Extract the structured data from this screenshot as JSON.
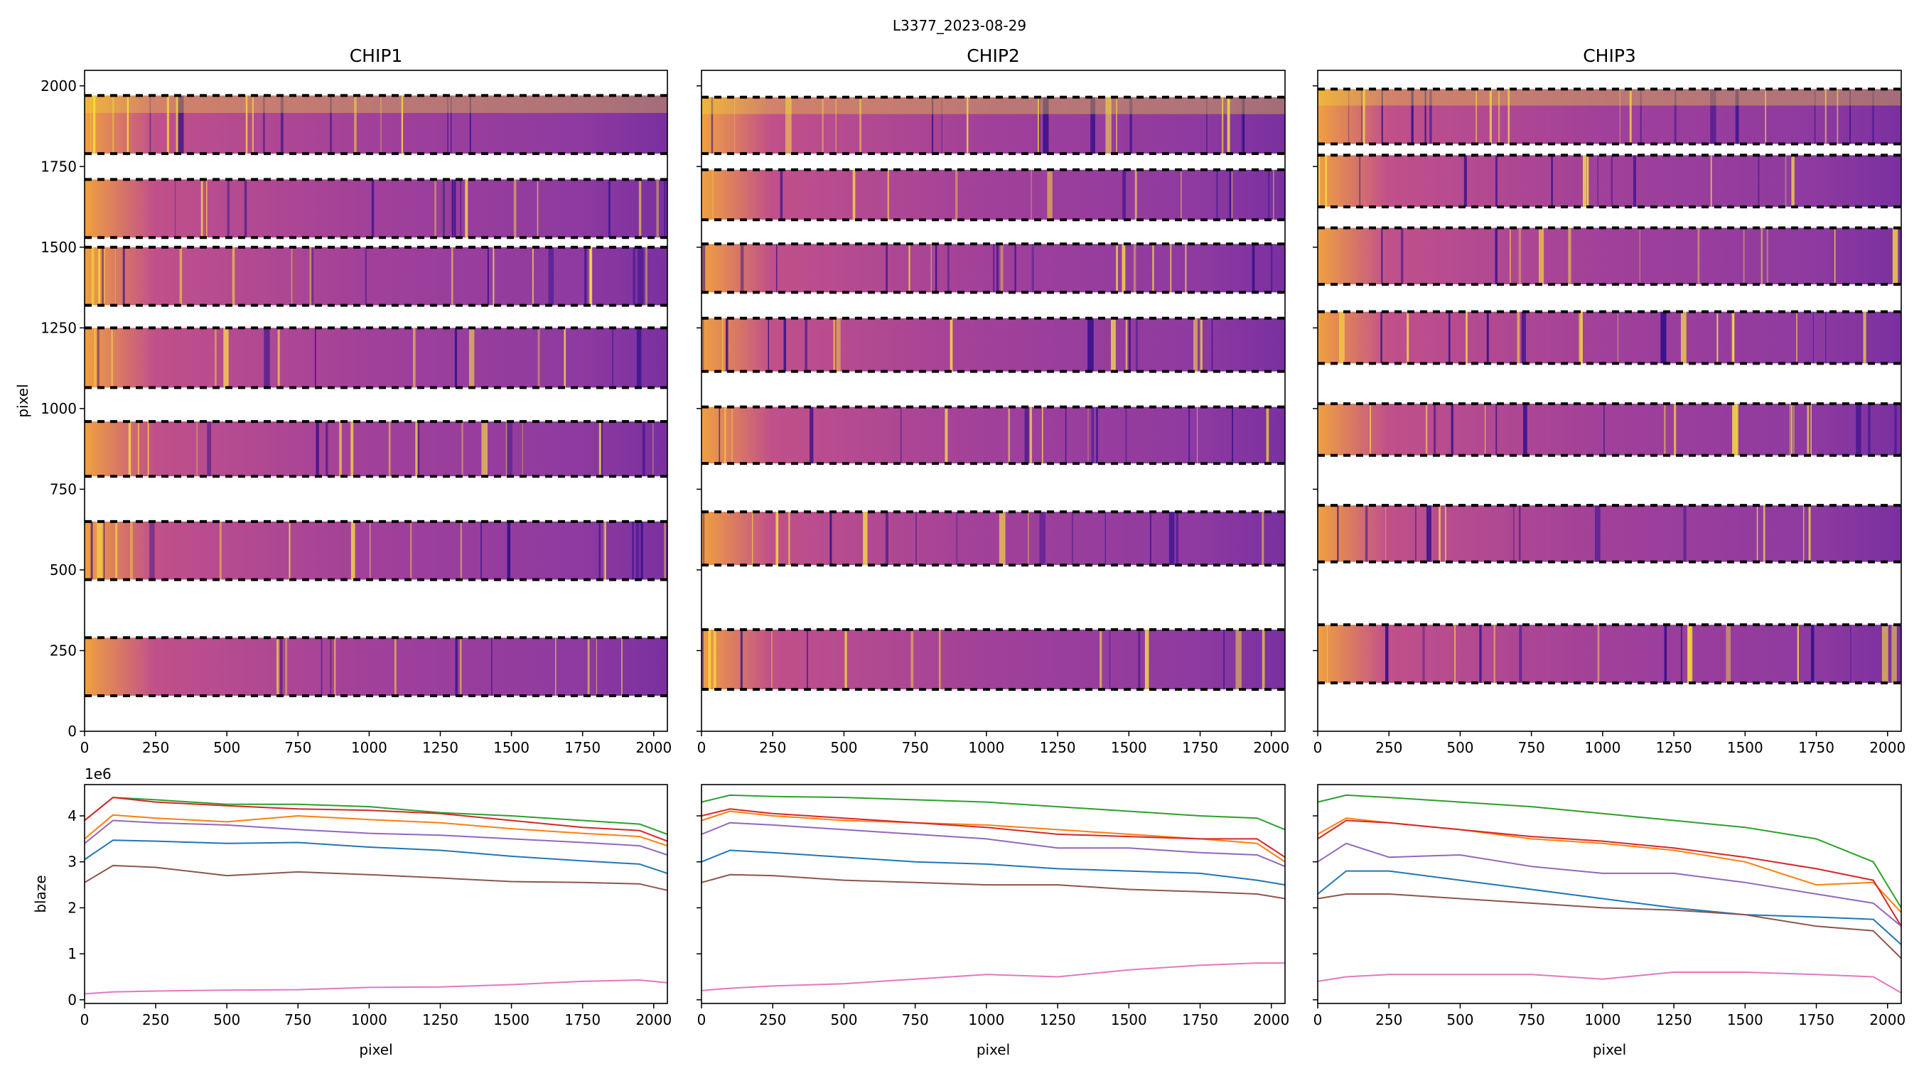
{
  "suptitle": "L3377_2023-08-29",
  "colors": {
    "series": [
      "#1f77b4",
      "#ff7f0e",
      "#2ca02c",
      "#d62728",
      "#9467bd",
      "#8c564b",
      "#e377c2"
    ],
    "cmap": "plasma"
  },
  "chart_data": [
    {
      "type": "heatmap",
      "title": "CHIP1",
      "ylabel": "pixel",
      "xlim": [
        0,
        2048
      ],
      "ylim": [
        0,
        2048
      ],
      "xticks": [
        0,
        250,
        500,
        750,
        1000,
        1250,
        1500,
        1750,
        2000
      ],
      "yticks": [
        0,
        250,
        500,
        750,
        1000,
        1250,
        1500,
        1750,
        2000
      ],
      "show_yticklabels": true,
      "orders": [
        [
          110,
          290
        ],
        [
          470,
          650
        ],
        [
          790,
          960
        ],
        [
          1065,
          1250
        ],
        [
          1320,
          1500
        ],
        [
          1530,
          1710
        ],
        [
          1790,
          1970
        ]
      ]
    },
    {
      "type": "heatmap",
      "title": "CHIP2",
      "ylabel": "",
      "xlim": [
        0,
        2048
      ],
      "ylim": [
        0,
        2048
      ],
      "xticks": [
        0,
        250,
        500,
        750,
        1000,
        1250,
        1500,
        1750,
        2000
      ],
      "yticks": [
        0,
        250,
        500,
        750,
        1000,
        1250,
        1500,
        1750,
        2000
      ],
      "show_yticklabels": false,
      "orders": [
        [
          130,
          315
        ],
        [
          515,
          680
        ],
        [
          830,
          1005
        ],
        [
          1115,
          1280
        ],
        [
          1360,
          1510
        ],
        [
          1585,
          1740
        ],
        [
          1790,
          1965
        ]
      ]
    },
    {
      "type": "heatmap",
      "title": "CHIP3",
      "ylabel": "",
      "xlim": [
        0,
        2048
      ],
      "ylim": [
        0,
        2048
      ],
      "xticks": [
        0,
        250,
        500,
        750,
        1000,
        1250,
        1500,
        1750,
        2000
      ],
      "yticks": [
        0,
        250,
        500,
        750,
        1000,
        1250,
        1500,
        1750,
        2000
      ],
      "show_yticklabels": false,
      "orders": [
        [
          150,
          330
        ],
        [
          525,
          700
        ],
        [
          855,
          1015
        ],
        [
          1140,
          1300
        ],
        [
          1385,
          1560
        ],
        [
          1625,
          1785
        ],
        [
          1820,
          1990
        ]
      ]
    },
    {
      "type": "line",
      "xlabel": "pixel",
      "ylabel": "blaze",
      "offset_text": "1e6",
      "xlim": [
        0,
        2048
      ],
      "ylim": [
        -0.08,
        4.68
      ],
      "xticks": [
        0,
        250,
        500,
        750,
        1000,
        1250,
        1500,
        1750,
        2000
      ],
      "yticks": [
        0,
        1,
        2,
        3,
        4
      ],
      "show_yticklabels": true,
      "x": [
        0,
        100,
        250,
        500,
        750,
        1000,
        1250,
        1500,
        1750,
        1950,
        2048
      ],
      "series": [
        {
          "values": [
            3.05,
            3.47,
            3.45,
            3.4,
            3.42,
            3.32,
            3.25,
            3.12,
            3.02,
            2.95,
            2.75
          ]
        },
        {
          "values": [
            3.5,
            4.02,
            3.95,
            3.87,
            4.0,
            3.92,
            3.85,
            3.72,
            3.62,
            3.55,
            3.35
          ]
        },
        {
          "values": [
            3.9,
            4.4,
            4.35,
            4.25,
            4.25,
            4.2,
            4.07,
            4.0,
            3.9,
            3.82,
            3.6
          ]
        },
        {
          "values": [
            3.9,
            4.4,
            4.3,
            4.22,
            4.15,
            4.12,
            4.05,
            3.9,
            3.75,
            3.68,
            3.45
          ]
        },
        {
          "values": [
            3.4,
            3.9,
            3.85,
            3.8,
            3.7,
            3.62,
            3.58,
            3.5,
            3.42,
            3.35,
            3.15
          ]
        },
        {
          "values": [
            2.55,
            2.92,
            2.88,
            2.7,
            2.78,
            2.72,
            2.65,
            2.57,
            2.55,
            2.52,
            2.38
          ]
        },
        {
          "values": [
            0.13,
            0.17,
            0.19,
            0.21,
            0.22,
            0.27,
            0.28,
            0.33,
            0.4,
            0.43,
            0.37
          ]
        }
      ]
    },
    {
      "type": "line",
      "xlabel": "pixel",
      "ylabel": "",
      "xlim": [
        0,
        2048
      ],
      "ylim": [
        -0.08,
        4.68
      ],
      "xticks": [
        0,
        250,
        500,
        750,
        1000,
        1250,
        1500,
        1750,
        2000
      ],
      "yticks": [
        0,
        1,
        2,
        3,
        4
      ],
      "show_yticklabels": false,
      "x": [
        0,
        100,
        250,
        500,
        750,
        1000,
        1250,
        1500,
        1750,
        1950,
        2048
      ],
      "series": [
        {
          "values": [
            3.0,
            3.25,
            3.2,
            3.1,
            3.0,
            2.95,
            2.85,
            2.8,
            2.75,
            2.6,
            2.5
          ]
        },
        {
          "values": [
            3.9,
            4.1,
            4.0,
            3.9,
            3.85,
            3.8,
            3.7,
            3.6,
            3.5,
            3.4,
            3.0
          ]
        },
        {
          "values": [
            4.3,
            4.45,
            4.42,
            4.4,
            4.35,
            4.3,
            4.2,
            4.1,
            4.0,
            3.95,
            3.7
          ]
        },
        {
          "values": [
            4.0,
            4.15,
            4.05,
            3.95,
            3.85,
            3.75,
            3.6,
            3.55,
            3.5,
            3.5,
            3.1
          ]
        },
        {
          "values": [
            3.6,
            3.85,
            3.8,
            3.7,
            3.6,
            3.5,
            3.3,
            3.3,
            3.2,
            3.15,
            2.9
          ]
        },
        {
          "values": [
            2.55,
            2.72,
            2.7,
            2.6,
            2.55,
            2.5,
            2.5,
            2.4,
            2.35,
            2.3,
            2.2
          ]
        },
        {
          "values": [
            0.2,
            0.25,
            0.3,
            0.35,
            0.45,
            0.55,
            0.5,
            0.65,
            0.75,
            0.8,
            0.8
          ]
        }
      ]
    },
    {
      "type": "line",
      "xlabel": "pixel",
      "ylabel": "",
      "xlim": [
        0,
        2048
      ],
      "ylim": [
        -0.08,
        4.68
      ],
      "xticks": [
        0,
        250,
        500,
        750,
        1000,
        1250,
        1500,
        1750,
        2000
      ],
      "yticks": [
        0,
        1,
        2,
        3,
        4
      ],
      "show_yticklabels": false,
      "x": [
        0,
        100,
        250,
        500,
        750,
        1000,
        1250,
        1500,
        1750,
        1950,
        2048
      ],
      "series": [
        {
          "values": [
            2.3,
            2.8,
            2.8,
            2.6,
            2.4,
            2.2,
            2.0,
            1.85,
            1.8,
            1.75,
            1.2
          ]
        },
        {
          "values": [
            3.6,
            3.95,
            3.85,
            3.7,
            3.5,
            3.4,
            3.25,
            3.0,
            2.5,
            2.55,
            1.9
          ]
        },
        {
          "values": [
            4.3,
            4.45,
            4.4,
            4.3,
            4.2,
            4.05,
            3.9,
            3.75,
            3.5,
            3.0,
            2.0
          ]
        },
        {
          "values": [
            3.5,
            3.9,
            3.85,
            3.7,
            3.55,
            3.45,
            3.3,
            3.1,
            2.85,
            2.6,
            1.6
          ]
        },
        {
          "values": [
            3.0,
            3.4,
            3.1,
            3.15,
            2.9,
            2.75,
            2.75,
            2.55,
            2.3,
            2.1,
            1.6
          ]
        },
        {
          "values": [
            2.2,
            2.3,
            2.3,
            2.2,
            2.1,
            2.0,
            1.95,
            1.85,
            1.6,
            1.5,
            0.9
          ]
        },
        {
          "values": [
            0.4,
            0.5,
            0.55,
            0.55,
            0.55,
            0.45,
            0.6,
            0.6,
            0.55,
            0.5,
            0.15
          ]
        }
      ]
    }
  ]
}
